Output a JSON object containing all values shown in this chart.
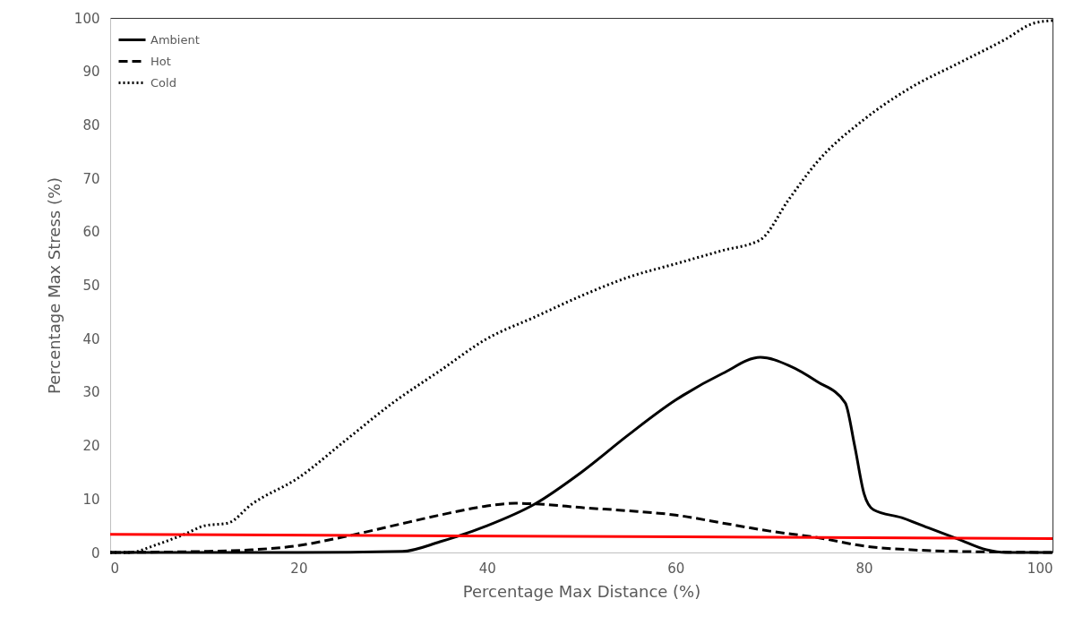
{
  "chart_data": {
    "type": "line",
    "xlabel": "Percentage Max Distance (%)",
    "ylabel": "Percentage Max Stress (%)",
    "xlim": [
      0,
      100
    ],
    "xticks": [
      0,
      20,
      40,
      60,
      80,
      100
    ],
    "ylim": [
      0,
      100
    ],
    "yticks": [
      0,
      10,
      20,
      30,
      40,
      50,
      60,
      70,
      80,
      90,
      100
    ],
    "grid": false,
    "legend": "top left",
    "series": [
      {
        "name": "Ambient",
        "color": "#000000",
        "line_style": "solid",
        "x": [
          0,
          20,
          31,
          35,
          40,
          45,
          50,
          55,
          60,
          65,
          69,
          72,
          75,
          78,
          79,
          80,
          81,
          84,
          87,
          90,
          93,
          95,
          100
        ],
        "values": [
          0,
          0,
          0.2,
          2,
          5,
          9,
          15,
          22,
          28.5,
          33.5,
          36.5,
          35,
          32,
          28,
          20,
          11,
          8,
          6.5,
          4.5,
          2.5,
          0.5,
          0,
          0
        ]
      },
      {
        "name": "Hot",
        "color": "#000000",
        "line_style": "dashed",
        "x": [
          0,
          10,
          15,
          20,
          25,
          30,
          35,
          40,
          43,
          46,
          50,
          55,
          60,
          65,
          70,
          75,
          80,
          85,
          90,
          100
        ],
        "values": [
          0,
          0.2,
          0.5,
          1.3,
          3,
          5,
          7,
          8.7,
          9.2,
          9,
          8.4,
          7.8,
          7,
          5.5,
          4,
          2.8,
          1.2,
          0.5,
          0.2,
          0
        ]
      },
      {
        "name": "Cold",
        "color": "#000000",
        "line_style": "dotted",
        "x": [
          0,
          2,
          5,
          8,
          10,
          12.5,
          15,
          20,
          25,
          30,
          35,
          40,
          45,
          50,
          55,
          60,
          65,
          69,
          72,
          75,
          80,
          85,
          90,
          95,
          98,
          100
        ],
        "values": [
          0,
          0,
          1.5,
          3.5,
          5,
          5.5,
          9,
          14,
          21,
          28,
          34,
          40,
          44,
          48,
          51.5,
          54,
          56.5,
          58.5,
          66,
          73,
          81,
          87,
          91.5,
          96,
          99,
          99.5
        ]
      },
      {
        "color": "#ff0000",
        "line_style": "solid",
        "x": [
          0,
          100
        ],
        "values": [
          3.4,
          2.6
        ]
      }
    ]
  }
}
